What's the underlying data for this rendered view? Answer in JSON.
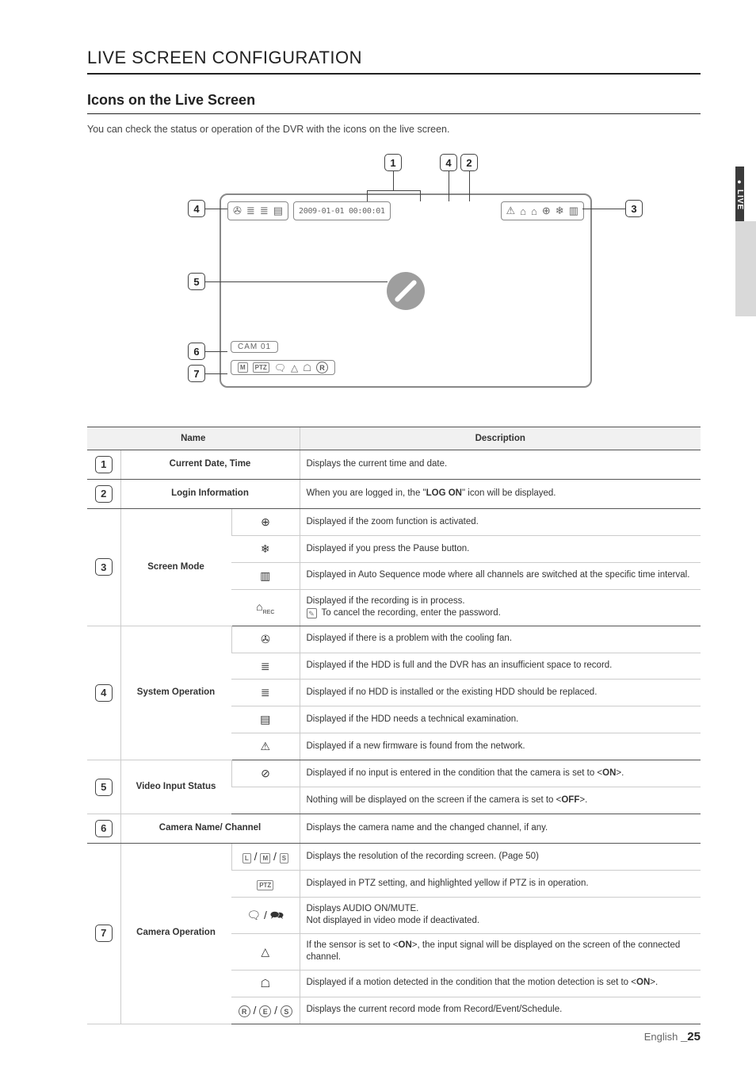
{
  "page": {
    "section_title": "LIVE SCREEN CONFIGURATION",
    "subheading": "Icons on the Live Screen",
    "intro": "You can check the status or operation of the DVR with the icons on the live screen.",
    "footer_lang": "English",
    "footer_page": "_25",
    "side_tab": "LIVE"
  },
  "diagram": {
    "date_text": "2009-01-01  00:00:01",
    "cam_label": "CAM 01",
    "callouts": {
      "c1": "1",
      "c2": "2",
      "c3": "3",
      "c4a": "4",
      "c4b": "4",
      "c5": "5",
      "c6": "6",
      "c7": "7"
    },
    "topbar_left_icons": [
      "✇",
      "≣",
      "≣",
      "▤"
    ],
    "topbar_right_icons": [
      "⚠",
      "⌂",
      "⌂",
      "⊕",
      "❄",
      "▥"
    ],
    "cam_ops_icons": [
      "M",
      "PTZ",
      "🗨",
      "△",
      "☖",
      "R"
    ]
  },
  "table": {
    "head_name": "Name",
    "head_desc": "Description",
    "rows": [
      {
        "num": "1",
        "name": "Current Date, Time",
        "icon": "",
        "desc": "Displays the current time and date.",
        "groupend": true
      },
      {
        "num": "2",
        "name": "Login Information",
        "icon": "",
        "desc": "When you are logged in, the \"<b>LOG ON</b>\" icon will be displayed.",
        "groupend": true
      },
      {
        "num": "3",
        "name": "Screen Mode",
        "rowspan": 4,
        "icon": "⊕",
        "desc": "Displayed if the zoom function is activated."
      },
      {
        "icon": "❄",
        "desc": "Displayed if you press the Pause button."
      },
      {
        "icon": "▥",
        "desc": "Displayed in Auto Sequence mode where all channels are switched at the specific time interval."
      },
      {
        "icon": "⌂<sub style='font-size:7px'>REC</sub>",
        "desc": "Displayed if the recording is in process.<br><span class='note-icon'>✎</span> To cancel the recording, enter the password.",
        "groupend": true
      },
      {
        "num": "4",
        "name": "System Operation",
        "rowspan": 5,
        "icon": "✇",
        "desc": "Displayed if there is a problem with the cooling fan."
      },
      {
        "icon": "≣",
        "desc": "Displayed if the HDD is full and the DVR has an insufficient space to record."
      },
      {
        "icon": "≣",
        "desc": "Displayed if no HDD is installed or the existing HDD should be replaced."
      },
      {
        "icon": "▤",
        "desc": "Displayed if the HDD needs a technical examination."
      },
      {
        "icon": "⚠",
        "desc": "Displayed if a new firmware is found from the network.",
        "groupend": true
      },
      {
        "num": "5",
        "name": "Video Input Status",
        "rowspan": 2,
        "icon": "⊘",
        "desc": "Displayed if no input is entered in the condition that the camera is set to &lt;<b>ON</b>&gt;."
      },
      {
        "icon": "",
        "desc": "Nothing will be displayed on the screen if the camera is set to &lt;<b>OFF</b>&gt;.",
        "groupend": true
      },
      {
        "num": "6",
        "name": "Camera Name/ Channel",
        "icon": "",
        "desc": "Displays the camera name and the changed channel, if any.",
        "groupend": true
      },
      {
        "num": "7",
        "name": "Camera Operation",
        "rowspan": 6,
        "icon": "<span class='rectic'>L</span> / <span class='rectic'>M</span> / <span class='rectic'>S</span>",
        "desc": "Displays the resolution of the recording screen. (Page 50)"
      },
      {
        "icon": "<span class='rectic'>PTZ</span>",
        "desc": "Displayed in PTZ setting, and highlighted yellow if PTZ is in operation."
      },
      {
        "icon": "🗨 / 🗪",
        "desc": "Displays AUDIO ON/MUTE.<br>Not displayed in video mode if deactivated."
      },
      {
        "icon": "△",
        "desc": "If the sensor is set to &lt;<b>ON</b>&gt;, the input signal will be displayed on the screen of the connected channel."
      },
      {
        "icon": "☖",
        "desc": "Displayed if a motion detected in the condition that the motion detection is set to &lt;<b>ON</b>&gt;."
      },
      {
        "icon": "<span class='ring'>R</span> / <span class='ring'>E</span> / <span class='ring'>S</span>",
        "desc": "Displays the current record mode from Record/Event/Schedule.",
        "groupend": true
      }
    ]
  }
}
